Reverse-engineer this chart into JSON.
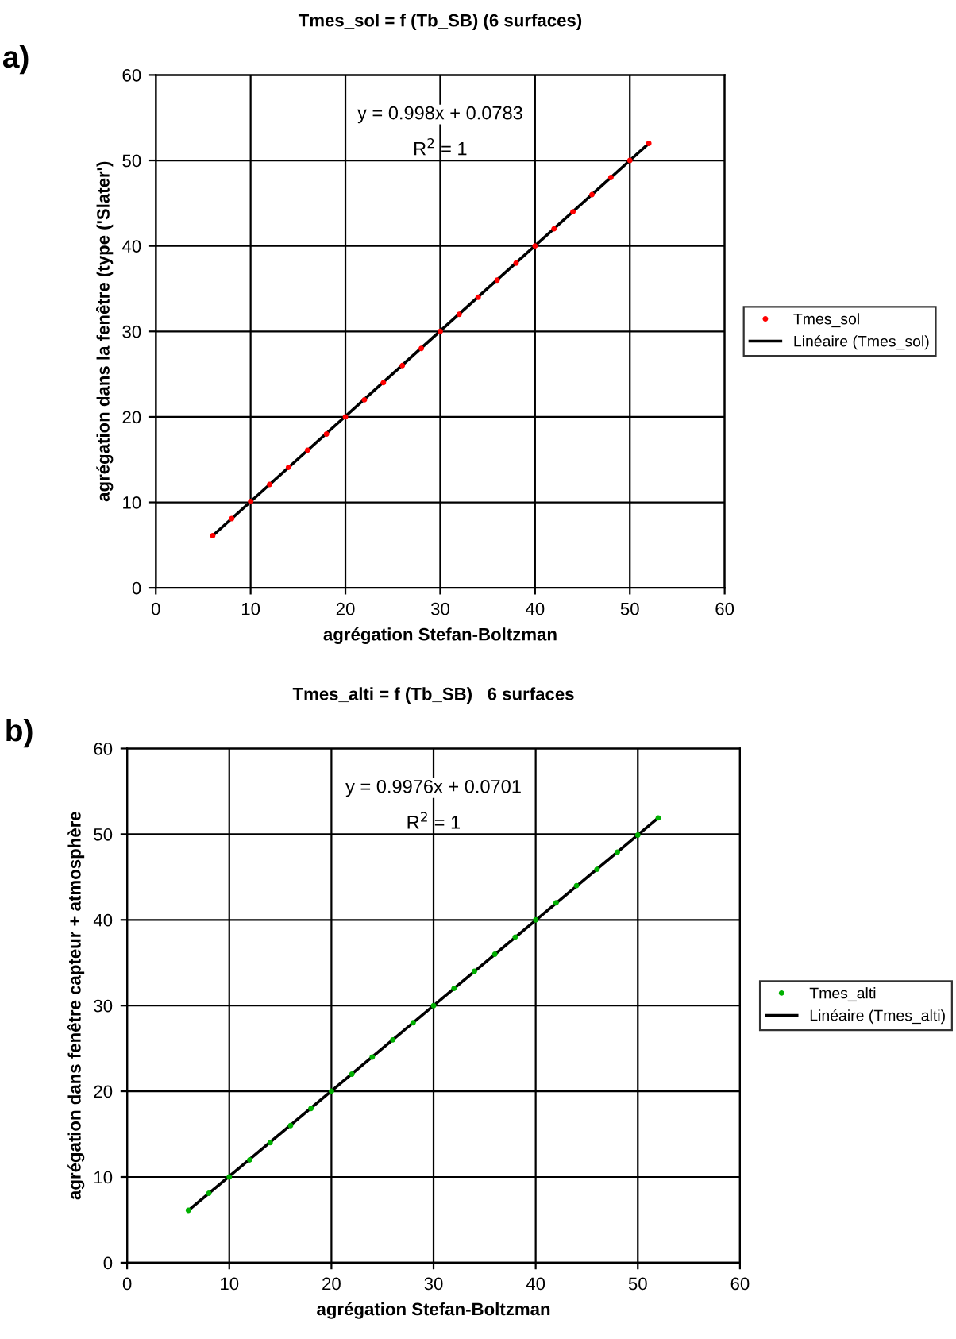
{
  "chart_data": [
    {
      "type": "scatter",
      "title": "Tmes_sol = f (Tb_SB) (6 surfaces)",
      "xlabel": "agrégation Stefan-Boltzman",
      "ylabel": "agrégation dans la fenêtre (type ('Slater')",
      "annotations": [
        "a)",
        "y = 0.998x + 0.0783",
        "R$^{2}$ = 1"
      ],
      "series": [
        {
          "name": "Tmes_sol",
          "marker": "circle",
          "color": "#ff0000",
          "x": [
            6,
            8,
            10,
            12,
            14,
            16,
            18,
            20,
            22,
            24,
            26,
            28,
            30,
            32,
            34,
            36,
            38,
            40,
            42,
            44,
            46,
            48,
            50,
            52
          ],
          "values": [
            6.1,
            8.1,
            10.1,
            12.1,
            14.1,
            16.1,
            18.0,
            20.0,
            22.0,
            24.0,
            26.0,
            28.0,
            30.0,
            32.0,
            34.0,
            36.0,
            38.0,
            40.0,
            42.0,
            44.0,
            46.0,
            48.0,
            50.0,
            52.0
          ]
        },
        {
          "name": "Linéaire (Tmes_sol)",
          "type": "line",
          "color": "#000000",
          "x": [
            6,
            52
          ],
          "values": [
            6.1,
            52.0
          ]
        }
      ],
      "xlim": [
        0,
        60
      ],
      "ylim": [
        0,
        60
      ],
      "xticks": [
        0,
        10,
        20,
        30,
        40,
        50,
        60
      ],
      "yticks": [
        0,
        10,
        20,
        30,
        40,
        50,
        60
      ],
      "grid": true,
      "legend": "right"
    },
    {
      "type": "scatter",
      "title": "Tmes_alti = f (Tb_SB)   6 surfaces",
      "xlabel": "agrégation Stefan-Boltzman",
      "ylabel": "agrégation dans fenêtre capteur + atmosphère",
      "annotations": [
        "b)",
        "y = 0.9976x + 0.0701",
        "R$^{2}$ = 1"
      ],
      "series": [
        {
          "name": "Tmes_alti",
          "marker": "circle",
          "color": "#00b000",
          "x": [
            6,
            8,
            10,
            12,
            14,
            16,
            18,
            20,
            22,
            24,
            26,
            28,
            30,
            32,
            34,
            36,
            38,
            40,
            42,
            44,
            46,
            48,
            50,
            52
          ],
          "values": [
            6.1,
            8.1,
            10.0,
            12.0,
            14.0,
            16.0,
            18.0,
            20.0,
            22.0,
            24.0,
            26.0,
            28.0,
            30.0,
            32.0,
            34.0,
            36.0,
            38.0,
            40.0,
            42.0,
            44.0,
            45.9,
            47.9,
            49.9,
            51.9
          ]
        },
        {
          "name": "Linéaire (Tmes_alti)",
          "type": "line",
          "color": "#000000",
          "x": [
            6,
            52
          ],
          "values": [
            6.1,
            51.9
          ]
        }
      ],
      "xlim": [
        0,
        60
      ],
      "ylim": [
        0,
        60
      ],
      "xticks": [
        0,
        10,
        20,
        30,
        40,
        50,
        60
      ],
      "yticks": [
        0,
        10,
        20,
        30,
        40,
        50,
        60
      ],
      "grid": true,
      "legend": "right"
    }
  ]
}
